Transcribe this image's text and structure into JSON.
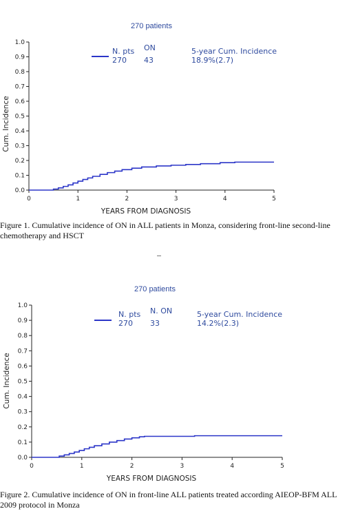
{
  "figures": [
    {
      "title": "270 patients",
      "legend": {
        "col1_header": "N. pts",
        "col1_value": "270",
        "col2_header": "ON",
        "col2_value": "43",
        "col3_header": "5-year Cum. Incidence",
        "col3_value": "18.9%(2.7)"
      },
      "caption": "Figure 1. Cumulative incidence of ON in ALL patients in Monza, considering front-line second-line chemotherapy and HSCT"
    },
    {
      "title": "270 patients",
      "legend": {
        "col1_header": "N. pts",
        "col1_value": "270",
        "col2_header": "N. ON",
        "col2_value": "33",
        "col3_header": "5-year Cum. Incidence",
        "col3_value": "14.2%(2.3)"
      },
      "caption": "Figure 2. Cumulative incidence of ON in front-line ALL patients treated according AIEOP-BFM ALL 2009 protocol in Monza"
    }
  ],
  "chart_data": [
    {
      "type": "line",
      "title": "270 patients",
      "xlabel": "YEARS FROM DIAGNOSIS",
      "ylabel": "Cum. Incidence",
      "xlim": [
        0,
        5
      ],
      "ylim": [
        0,
        1.0
      ],
      "x_ticks": [
        "0",
        "1",
        "2",
        "3",
        "4",
        "5"
      ],
      "y_ticks": [
        "0.0",
        "0.1",
        "0.2",
        "0.3",
        "0.4",
        "0.5",
        "0.6",
        "0.7",
        "0.8",
        "0.9",
        "1.0"
      ],
      "grid": false,
      "legend_position": "top-center",
      "color": "#2b35c8",
      "series": [
        {
          "x": [
            0,
            0.42,
            0.5,
            0.6,
            0.7,
            0.8,
            0.9,
            1.0,
            1.1,
            1.2,
            1.3,
            1.45,
            1.6,
            1.75,
            1.9,
            2.1,
            2.3,
            2.6,
            2.9,
            3.2,
            3.5,
            3.9,
            4.2,
            5.0
          ],
          "y": [
            0,
            0,
            0.007,
            0.015,
            0.025,
            0.035,
            0.048,
            0.06,
            0.072,
            0.082,
            0.093,
            0.106,
            0.118,
            0.128,
            0.138,
            0.148,
            0.156,
            0.163,
            0.168,
            0.173,
            0.178,
            0.185,
            0.189,
            0.189
          ]
        }
      ]
    },
    {
      "type": "line",
      "title": "270 patients",
      "xlabel": "YEARS FROM DIAGNOSIS",
      "ylabel": "Cum. Incidence",
      "xlim": [
        0,
        5
      ],
      "ylim": [
        0,
        1.0
      ],
      "x_ticks": [
        "0",
        "1",
        "2",
        "3",
        "4",
        "5"
      ],
      "y_ticks": [
        "0.0",
        "0.1",
        "0.2",
        "0.3",
        "0.4",
        "0.5",
        "0.6",
        "0.7",
        "0.8",
        "0.9",
        "1.0"
      ],
      "grid": false,
      "legend_position": "top-center",
      "color": "#2b35c8",
      "series": [
        {
          "x": [
            0,
            0.45,
            0.55,
            0.65,
            0.75,
            0.85,
            0.95,
            1.05,
            1.15,
            1.25,
            1.4,
            1.55,
            1.7,
            1.85,
            2.0,
            2.15,
            2.25,
            3.25,
            5.0
          ],
          "y": [
            0,
            0,
            0.008,
            0.016,
            0.025,
            0.035,
            0.045,
            0.056,
            0.066,
            0.076,
            0.088,
            0.1,
            0.11,
            0.12,
            0.128,
            0.135,
            0.138,
            0.142,
            0.142
          ]
        }
      ]
    }
  ]
}
